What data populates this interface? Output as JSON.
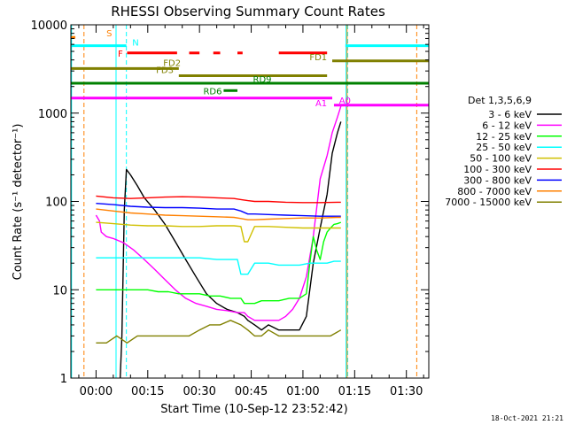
{
  "chart_data": {
    "type": "line",
    "title": "RHESSI Observing Summary Count Rates",
    "xlabel": "Start Time (10-Sep-12 23:52:42)",
    "ylabel": "Count Rate (s⁻¹ detector⁻¹)",
    "yscale": "log",
    "ylim": [
      1,
      10000
    ],
    "xlim_minutes": [
      -7.3,
      96.5
    ],
    "y_ticks": [
      {
        "value": 1,
        "label": "1"
      },
      {
        "value": 10,
        "label": "10"
      },
      {
        "value": 100,
        "label": "100"
      },
      {
        "value": 1000,
        "label": "1000"
      },
      {
        "value": 10000,
        "label": "10000"
      }
    ],
    "x_ticks": [
      {
        "value": 0,
        "label": "00:00"
      },
      {
        "value": 15,
        "label": "00:15"
      },
      {
        "value": 30,
        "label": "00:30"
      },
      {
        "value": 45,
        "label": "00:45"
      },
      {
        "value": 60,
        "label": "01:00"
      },
      {
        "value": 75,
        "label": "01:15"
      },
      {
        "value": 90,
        "label": "01:30"
      }
    ],
    "legend_title": "Det 1,3,5,6,9",
    "legend_position": "right",
    "series": [
      {
        "name": "3 - 6 keV",
        "color": "#000000",
        "x": [
          7,
          7.5,
          8.2,
          8.8,
          10,
          12,
          14,
          17,
          20,
          23,
          26,
          29,
          32,
          35,
          38,
          41,
          43,
          44,
          46,
          48,
          50,
          53,
          56,
          59,
          61,
          63,
          65,
          67,
          68.5,
          70,
          71
        ],
        "y": [
          1,
          3,
          80,
          230,
          200,
          150,
          110,
          80,
          55,
          35,
          22,
          14,
          9,
          7,
          6,
          5.5,
          5,
          4.5,
          4,
          3.5,
          4,
          3.5,
          3.5,
          3.5,
          5,
          20,
          50,
          120,
          350,
          600,
          800
        ]
      },
      {
        "name": "6 - 12 keV",
        "color": "#ff00ff",
        "x": [
          0,
          1,
          1.5,
          3,
          5,
          8,
          11,
          14,
          17,
          20,
          23,
          26,
          29,
          32,
          35,
          38,
          41,
          43,
          44,
          46,
          48,
          50,
          53,
          55,
          57,
          59,
          61,
          63,
          65,
          67,
          68.5,
          70,
          71
        ],
        "y": [
          70,
          60,
          45,
          40,
          38,
          34,
          28,
          22,
          17,
          13,
          10,
          8,
          7,
          6.5,
          6,
          5.8,
          5.5,
          5.5,
          5,
          4.5,
          4.5,
          4.5,
          4.5,
          5,
          6,
          8,
          14,
          40,
          180,
          330,
          600,
          900,
          1200
        ]
      },
      {
        "name": "12 - 25 keV",
        "color": "#00ff00",
        "x": [
          0,
          3,
          6,
          9,
          12,
          15,
          18,
          21,
          24,
          27,
          30,
          33,
          36,
          39,
          42,
          43,
          44,
          46,
          48,
          50,
          53,
          56,
          59,
          61,
          62,
          63,
          64,
          65,
          66,
          67,
          68,
          69,
          70,
          71
        ],
        "y": [
          10,
          10,
          10,
          10,
          10,
          10,
          9.5,
          9.5,
          9,
          9,
          9,
          8.5,
          8.5,
          8,
          8,
          7,
          7,
          7,
          7.5,
          7.5,
          7.5,
          8,
          8,
          9,
          20,
          40,
          28,
          22,
          35,
          45,
          50,
          55,
          56,
          58
        ]
      },
      {
        "name": "25 - 50 keV",
        "color": "#00ffff",
        "x": [
          0,
          5,
          10,
          15,
          20,
          25,
          30,
          35,
          39,
          41,
          42,
          43,
          44,
          46,
          48,
          50,
          53,
          56,
          59,
          62,
          65,
          67,
          69,
          70,
          71
        ],
        "y": [
          23,
          23,
          23,
          23,
          23,
          23,
          23,
          22,
          22,
          22,
          15,
          15,
          15,
          20,
          20,
          20,
          19,
          19,
          19,
          20,
          20,
          20,
          21,
          21,
          21
        ]
      },
      {
        "name": "50 - 100 keV",
        "color": "#d0c000",
        "x": [
          0,
          5,
          10,
          15,
          20,
          25,
          30,
          35,
          40,
          42,
          43,
          44,
          46,
          50,
          55,
          60,
          65,
          70,
          71
        ],
        "y": [
          58,
          56,
          54,
          53,
          53,
          52,
          52,
          53,
          53,
          52,
          35,
          35,
          52,
          52,
          51,
          50,
          50,
          50,
          50
        ]
      },
      {
        "name": "100 - 300 keV",
        "color": "#ff0000",
        "x": [
          0,
          5,
          10,
          15,
          20,
          25,
          30,
          35,
          40,
          42,
          44,
          46,
          50,
          55,
          60,
          65,
          70,
          71
        ],
        "y": [
          115,
          110,
          108,
          110,
          112,
          113,
          112,
          110,
          108,
          105,
          102,
          100,
          100,
          98,
          97,
          97,
          98,
          98
        ]
      },
      {
        "name": "300 - 800 keV",
        "color": "#0000ff",
        "x": [
          0,
          5,
          10,
          15,
          20,
          25,
          30,
          35,
          40,
          42,
          44,
          46,
          50,
          55,
          60,
          65,
          70,
          71
        ],
        "y": [
          95,
          92,
          88,
          86,
          85,
          85,
          84,
          82,
          82,
          78,
          72,
          72,
          71,
          70,
          69,
          68,
          68,
          68
        ]
      },
      {
        "name": "800 - 7000 keV",
        "color": "#ff8000",
        "x": [
          0,
          5,
          10,
          15,
          20,
          25,
          30,
          35,
          40,
          42,
          44,
          46,
          50,
          55,
          60,
          65,
          70,
          71
        ],
        "y": [
          82,
          78,
          74,
          72,
          70,
          69,
          68,
          67,
          66,
          64,
          62,
          62,
          63,
          64,
          65,
          65,
          66,
          66
        ]
      },
      {
        "name": "7000 - 15000 keV",
        "color": "#808000",
        "x": [
          0,
          3,
          6,
          9,
          12,
          15,
          18,
          21,
          24,
          27,
          30,
          33,
          36,
          39,
          42,
          44,
          46,
          48,
          50,
          53,
          56,
          59,
          62,
          65,
          68,
          71
        ],
        "y": [
          2.5,
          2.5,
          3,
          2.5,
          3,
          3,
          3,
          3,
          3,
          3,
          3.5,
          4,
          4,
          4.5,
          4,
          3.5,
          3,
          3,
          3.5,
          3,
          3,
          3,
          3,
          3,
          3,
          3.5
        ]
      }
    ],
    "state_bars": [
      {
        "label": "S",
        "color": "#ff8000",
        "y": 7200,
        "segments": [
          [
            -7.3,
            -6
          ]
        ]
      },
      {
        "label": "N",
        "color": "#00ffff",
        "y": 5800,
        "segments": [
          [
            -7.3,
            8.8
          ],
          [
            72.3,
            96.5
          ]
        ]
      },
      {
        "label": "F",
        "color": "#ff0000",
        "y": 4800,
        "segments": [
          [
            9,
            23.5
          ],
          [
            27,
            30
          ],
          [
            34,
            36
          ],
          [
            41,
            42.5
          ],
          [
            53,
            67
          ]
        ]
      },
      {
        "label": "FD1",
        "color": "#808000",
        "y": 3900,
        "segments": [
          [
            68.5,
            96.5
          ]
        ]
      },
      {
        "label": "FD2",
        "color": "#808000",
        "y": 3200,
        "segments": [
          [
            -7.3,
            24
          ]
        ]
      },
      {
        "label": "FD3",
        "color": "#808000",
        "y": 2650,
        "segments": [
          [
            24,
            67
          ]
        ]
      },
      {
        "label": "RD9",
        "color": "#008000",
        "y": 2180,
        "segments": [
          [
            -7.3,
            96.5
          ]
        ]
      },
      {
        "label": "RD6",
        "color": "#008000",
        "y": 1800,
        "segments": [
          [
            37,
            41
          ]
        ]
      },
      {
        "label": "A1",
        "color": "#ff00ff",
        "y": 1480,
        "segments": [
          [
            -7.3,
            68.5
          ]
        ]
      },
      {
        "label": "A0",
        "color": "#ff00ff",
        "y": 1230,
        "segments": [
          [
            69,
            96.5
          ]
        ]
      }
    ],
    "event_lines": [
      {
        "x": -3.5,
        "color": "#ff8000",
        "style": "dashed"
      },
      {
        "x": 8.8,
        "color": "#00ffff",
        "style": "dashed"
      },
      {
        "x": 73,
        "color": "#00ffff",
        "style": "dashed"
      },
      {
        "x": 93,
        "color": "#ff8000",
        "style": "dashed"
      },
      {
        "x": -7.1,
        "color": "#00ffff",
        "style": "solid"
      },
      {
        "x": 5.8,
        "color": "#00ffff",
        "style": "solid"
      },
      {
        "x": 72.5,
        "color": "#00ffff",
        "style": "solid"
      },
      {
        "x": 72.8,
        "color": "#ff8000",
        "style": "solid"
      }
    ]
  },
  "footer": {
    "timestamp": "18-Oct-2021 21:21"
  }
}
